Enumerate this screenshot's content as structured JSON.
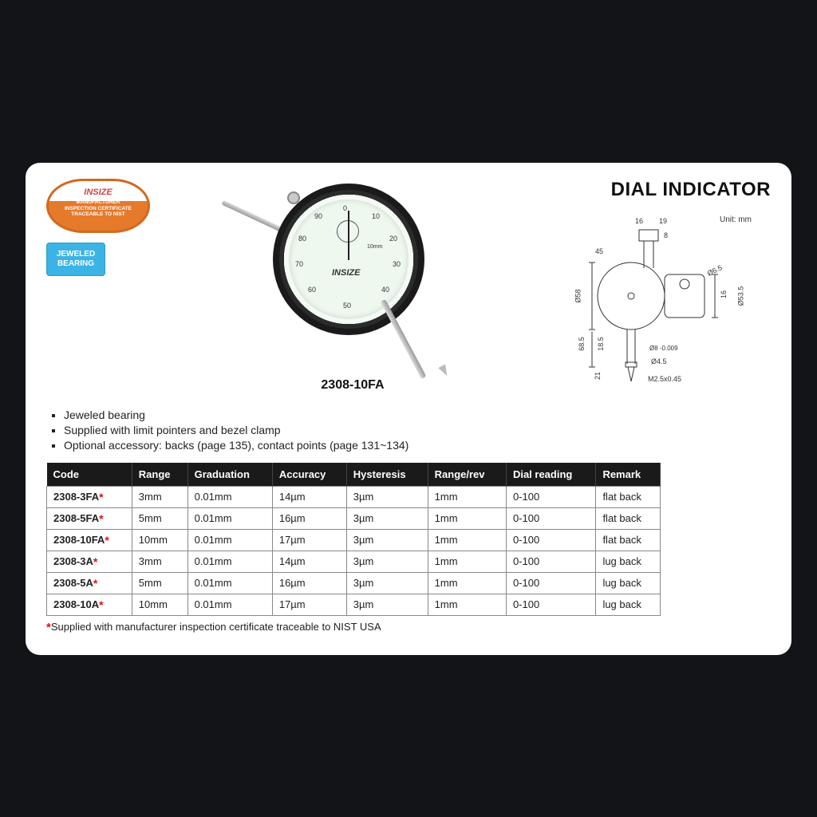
{
  "title": "DIAL INDICATOR",
  "cert_badge": {
    "brand": "INSIZE",
    "lines": [
      "MANUFACTURER",
      "INSPECTION CERTIFICATE",
      "TRACEABLE TO NIST"
    ],
    "border_color": "#d2691e",
    "fill_color": "#e57a2a"
  },
  "jewel_badge": {
    "text": "JEWELED BEARING",
    "bg": "#3bb4e5"
  },
  "product": {
    "model": "2308-10FA",
    "dial_numbers": [
      "0",
      "10",
      "20",
      "30",
      "40",
      "50",
      "60",
      "70",
      "80",
      "90"
    ],
    "brand_on_face": "INSIZE",
    "range_on_face": "10mm"
  },
  "tech_drawing": {
    "unit_label": "Unit: mm",
    "dims": {
      "top_w1": "16",
      "top_w2": "19",
      "top_h": "8",
      "stem_h": "45",
      "dial_d": "Ø58",
      "lug_d1": "Ø6.5",
      "lug_h": "16",
      "back_d": "Ø53.5",
      "body_h": "68.5",
      "step_h": "18.5",
      "shaft_d": "Ø8 -0.009",
      "shaft_cap": "Ø4.5",
      "tip_h": "21",
      "thread": "M2.5x0.45"
    }
  },
  "features": [
    "Jeweled bearing",
    "Supplied with limit pointers and bezel clamp",
    "Optional accessory: backs (page 135), contact points (page 131~134)"
  ],
  "table": {
    "columns": [
      "Code",
      "Range",
      "Graduation",
      "Accuracy",
      "Hysteresis",
      "Range/rev",
      "Dial reading",
      "Remark"
    ],
    "rows": [
      [
        "2308-3FA",
        "3mm",
        "0.01mm",
        "14µm",
        "3µm",
        "1mm",
        "0-100",
        "flat back"
      ],
      [
        "2308-5FA",
        "5mm",
        "0.01mm",
        "16µm",
        "3µm",
        "1mm",
        "0-100",
        "flat back"
      ],
      [
        "2308-10FA",
        "10mm",
        "0.01mm",
        "17µm",
        "3µm",
        "1mm",
        "0-100",
        "flat back"
      ],
      [
        "2308-3A",
        "3mm",
        "0.01mm",
        "14µm",
        "3µm",
        "1mm",
        "0-100",
        "lug back"
      ],
      [
        "2308-5A",
        "5mm",
        "0.01mm",
        "16µm",
        "3µm",
        "1mm",
        "0-100",
        "lug back"
      ],
      [
        "2308-10A",
        "10mm",
        "0.01mm",
        "17µm",
        "3µm",
        "1mm",
        "0-100",
        "lug back"
      ]
    ],
    "header_bg": "#1a1a1a",
    "border_color": "#888"
  },
  "footnote": "Supplied with manufacturer inspection certificate traceable to NIST USA",
  "colors": {
    "page_bg": "#121417",
    "card_bg": "#ffffff",
    "asterisk": "#d11"
  }
}
